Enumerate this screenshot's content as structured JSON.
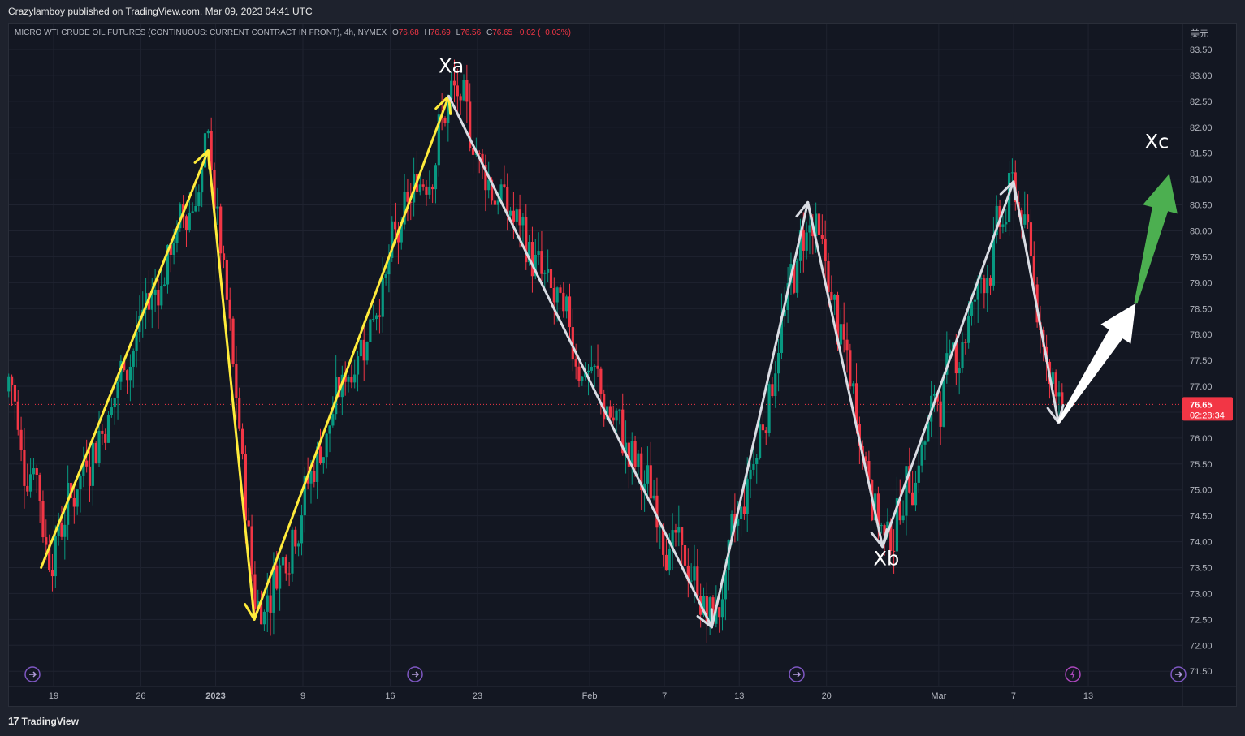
{
  "publisher": "Crazylamboy published on TradingView.com, Mar 09, 2023 04:41 UTC",
  "brand": "TradingView",
  "currency": "美元",
  "legend": {
    "symbol": "MICRO WTI CRUDE OIL FUTURES (CONTINUOUS: CURRENT CONTRACT IN FRONT), 4h, NYMEX",
    "o_label": "O",
    "o": "76.68",
    "h_label": "H",
    "h": "76.69",
    "l_label": "L",
    "l": "76.56",
    "c_label": "C",
    "c": "76.65",
    "change": "−0.02 (−0.03%)"
  },
  "price_tag": {
    "price": "76.65",
    "countdown": "02:28:34",
    "value": 76.65
  },
  "colors": {
    "background": "#131722",
    "up_candle": "#089981",
    "down_candle": "#f23645",
    "yellow_arrows": "#ffeb3b",
    "white_arrows": "#d9dce3",
    "green_arrow": "#4caf50",
    "price_line": "#f23645"
  },
  "chart_data": {
    "type": "candlestick",
    "interval": "4h",
    "y_axis": {
      "ticks": [
        "83.50",
        "83.00",
        "82.50",
        "82.00",
        "81.50",
        "81.00",
        "80.50",
        "80.00",
        "79.50",
        "79.00",
        "78.50",
        "78.00",
        "77.50",
        "77.00",
        "76.50",
        "76.00",
        "75.50",
        "75.00",
        "74.50",
        "74.00",
        "73.50",
        "73.00",
        "72.50",
        "72.00",
        "71.50"
      ],
      "range": [
        71.5,
        83.5
      ]
    },
    "x_axis": {
      "ticks": [
        {
          "label": "19",
          "day": 0
        },
        {
          "label": "26",
          "day": 7
        },
        {
          "label": "2023",
          "day": 13
        },
        {
          "label": "9",
          "day": 20
        },
        {
          "label": "16",
          "day": 27
        },
        {
          "label": "23",
          "day": 34
        },
        {
          "label": "Feb",
          "day": 43
        },
        {
          "label": "7",
          "day": 49
        },
        {
          "label": "13",
          "day": 55
        },
        {
          "label": "20",
          "day": 62
        },
        {
          "label": "Mar",
          "day": 71
        },
        {
          "label": "7",
          "day": 77
        },
        {
          "label": "13",
          "day": 83
        }
      ]
    },
    "swing_points": [
      {
        "day": -1.0,
        "price": 73.5
      },
      {
        "day": 12.4,
        "price": 81.55
      },
      {
        "day": 16.1,
        "price": 72.5
      },
      {
        "day": 31.7,
        "price": 82.6
      },
      {
        "day": 52.8,
        "price": 72.35
      },
      {
        "day": 60.5,
        "price": 80.55
      },
      {
        "day": 66.5,
        "price": 73.9
      },
      {
        "day": 77.0,
        "price": 80.95
      },
      {
        "day": 80.6,
        "price": 76.3
      },
      {
        "day": 86.8,
        "price": 78.6
      },
      {
        "day": 89.5,
        "price": 81.1
      }
    ],
    "annotations": [
      {
        "text": "Xa",
        "day": 31.9,
        "price": 83.05
      },
      {
        "text": "Xb",
        "day": 66.8,
        "price": 73.55
      },
      {
        "text": "Xc",
        "day": 88.5,
        "price": 81.6
      }
    ]
  }
}
